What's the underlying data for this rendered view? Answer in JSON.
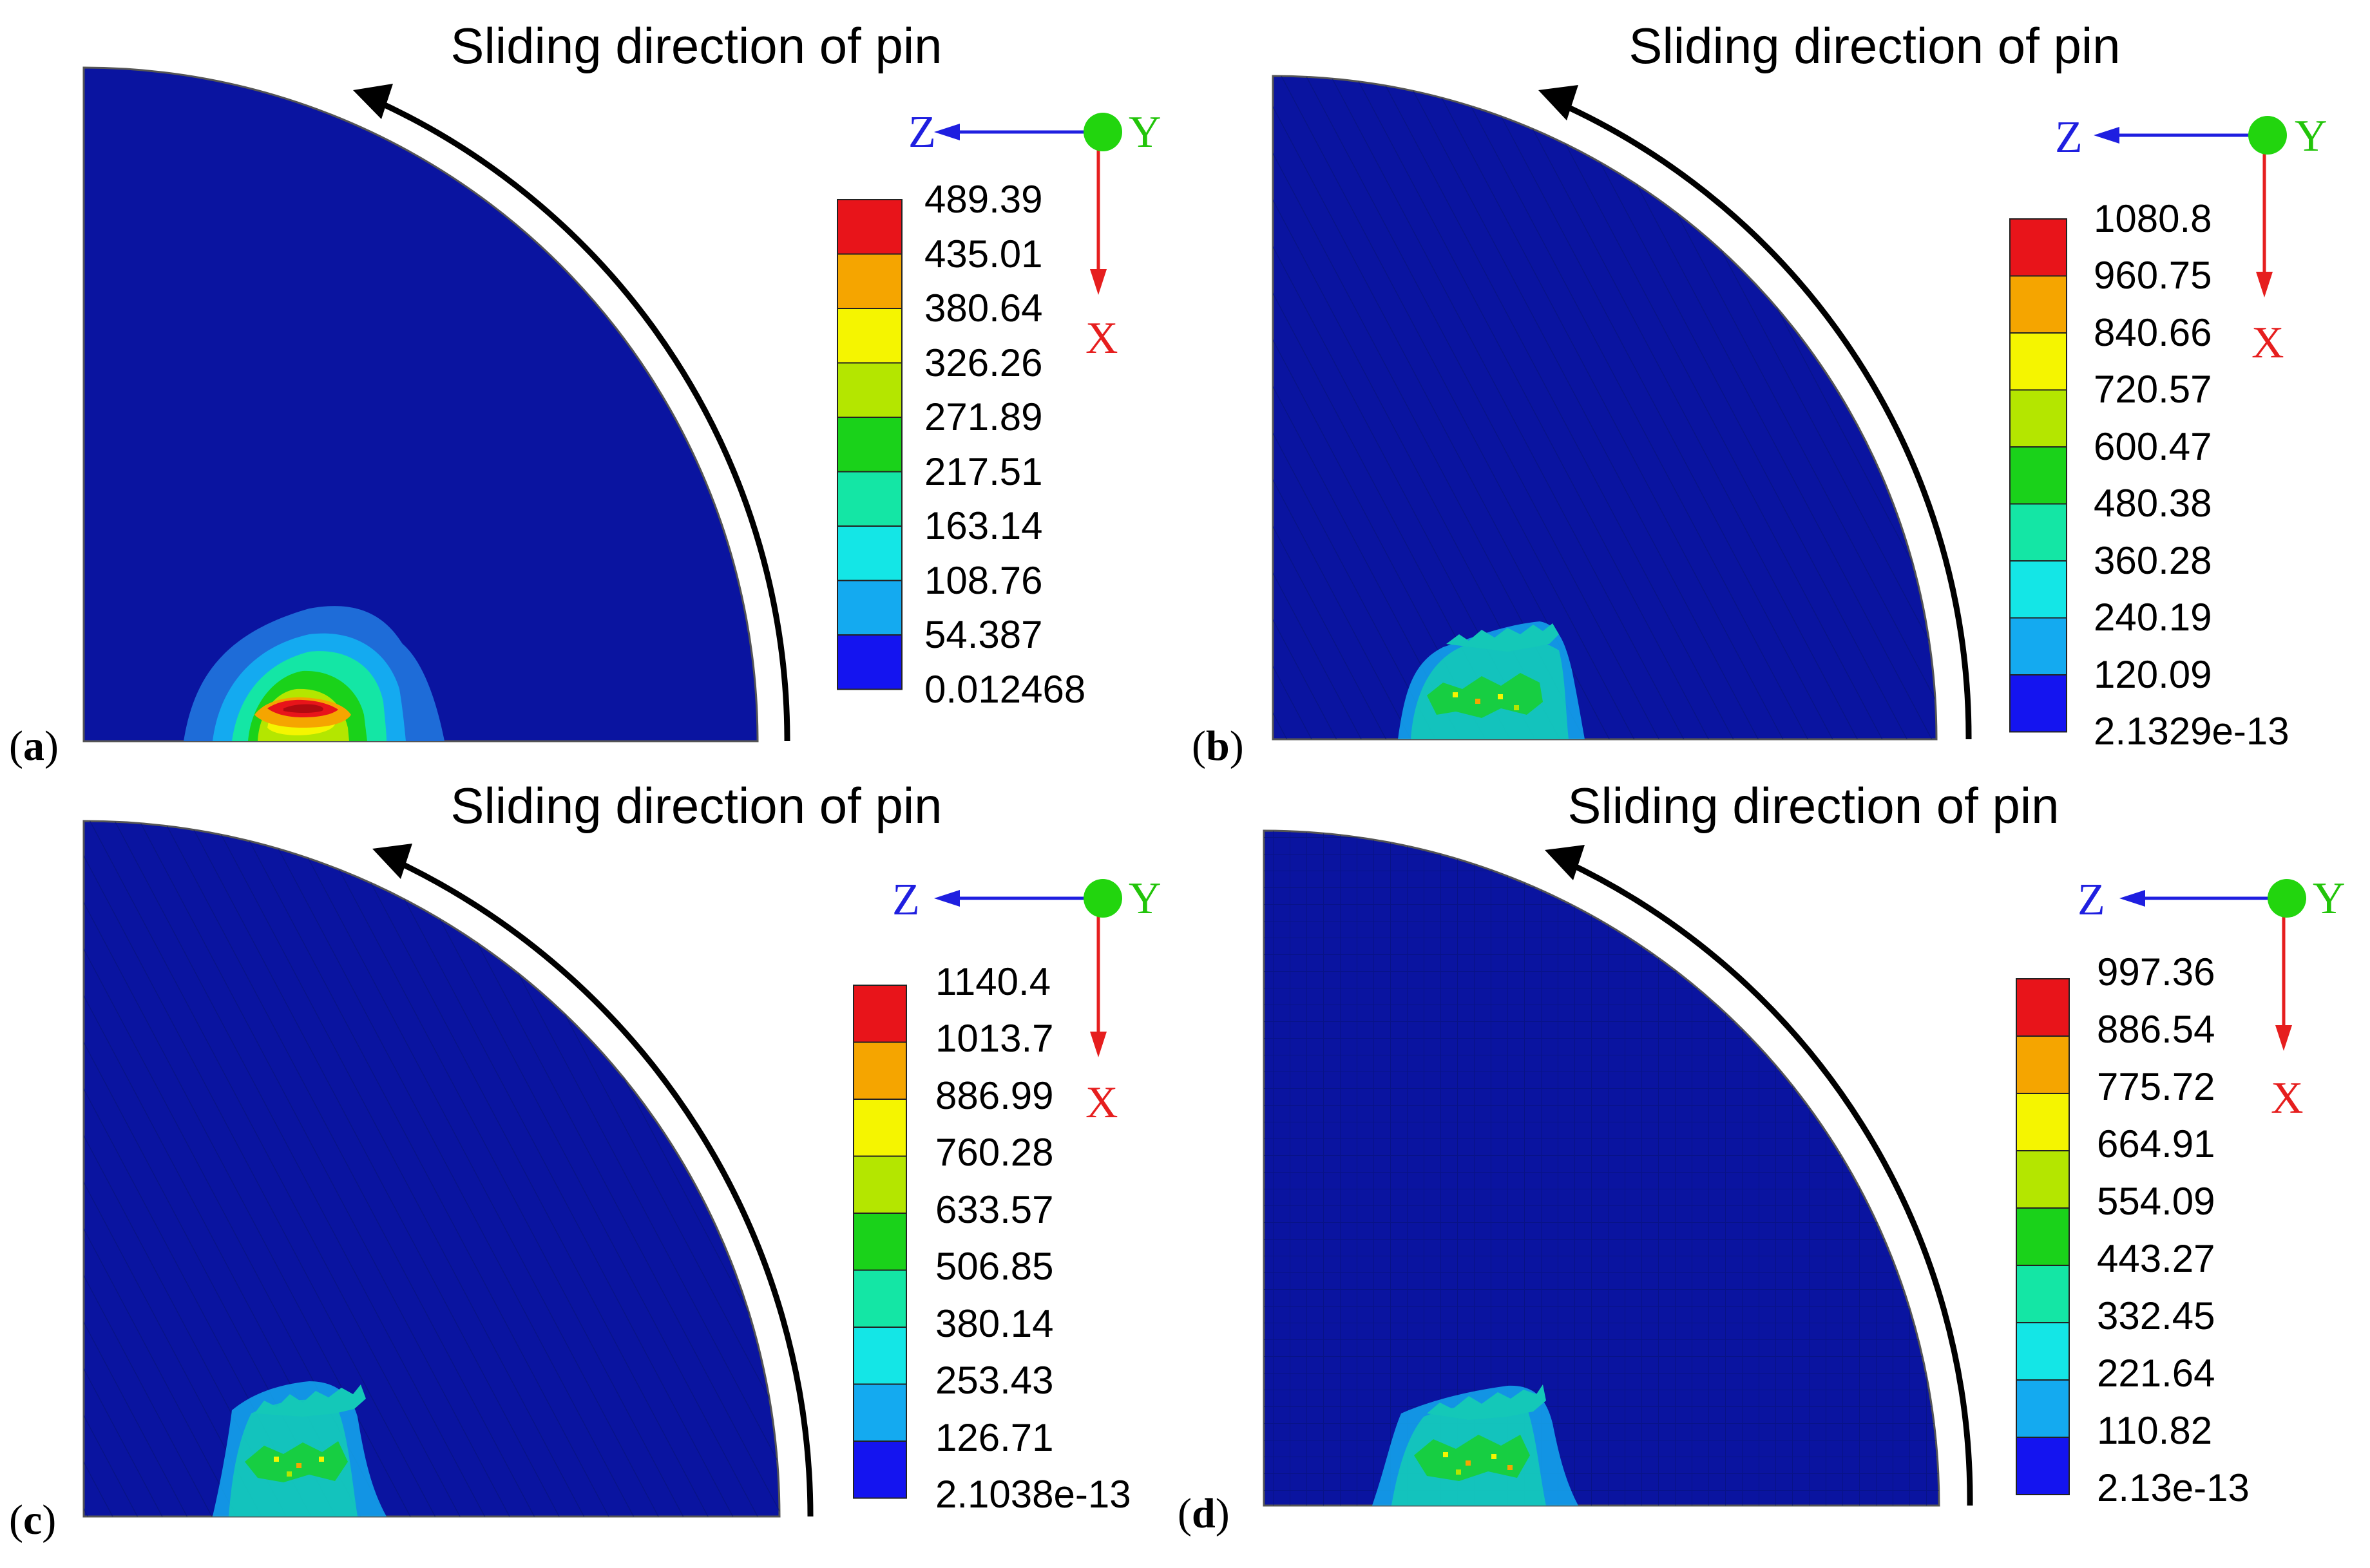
{
  "panels": [
    {
      "label_open": "(",
      "label_letter": "a",
      "label_close": ")",
      "title": "Sliding direction of pin",
      "axes": {
        "z": "Z",
        "y": "Y",
        "x": "X"
      },
      "legend": [
        "489.39",
        "435.01",
        "380.64",
        "326.26",
        "271.89",
        "217.51",
        "163.14",
        "108.76",
        "54.387",
        "0.012468"
      ],
      "mesh": "none",
      "hotspot": "smooth"
    },
    {
      "label_open": "(",
      "label_letter": "b",
      "label_close": ")",
      "title": "Sliding direction of pin",
      "axes": {
        "z": "Z",
        "y": "Y",
        "x": "X"
      },
      "legend": [
        "1080.8",
        "960.75",
        "840.66",
        "720.57",
        "600.47",
        "480.38",
        "360.28",
        "240.19",
        "120.09",
        "2.1329e-13"
      ],
      "mesh": "diagonal",
      "hotspot": "fragmented"
    },
    {
      "label_open": "(",
      "label_letter": "c",
      "label_close": ")",
      "title": "Sliding direction of pin",
      "axes": {
        "z": "Z",
        "y": "Y",
        "x": "X"
      },
      "legend": [
        "1140.4",
        "1013.7",
        "886.99",
        "760.28",
        "633.57",
        "506.85",
        "380.14",
        "253.43",
        "126.71",
        "2.1038e-13"
      ],
      "mesh": "diagonal",
      "hotspot": "fragmented"
    },
    {
      "label_open": "(",
      "label_letter": "d",
      "label_close": ")",
      "title": "Sliding direction of pin",
      "axes": {
        "z": "Z",
        "y": "Y",
        "x": "X"
      },
      "legend": [
        "997.36",
        "886.54",
        "775.72",
        "664.91",
        "554.09",
        "443.27",
        "332.45",
        "221.64",
        "110.82",
        "2.13e-13"
      ],
      "mesh": "grid",
      "hotspot": "fragmented"
    }
  ],
  "legend_colors": [
    "#e8141a",
    "#f5a500",
    "#f5f500",
    "#b4e600",
    "#1ad21a",
    "#14e6a5",
    "#14e6e6",
    "#14aaf0",
    "#1414f0"
  ],
  "colors": {
    "disk": "#0a14a0",
    "axis_z": "#1f1fe0",
    "axis_y": "#22c40a",
    "axis_x": "#e61e1e"
  }
}
